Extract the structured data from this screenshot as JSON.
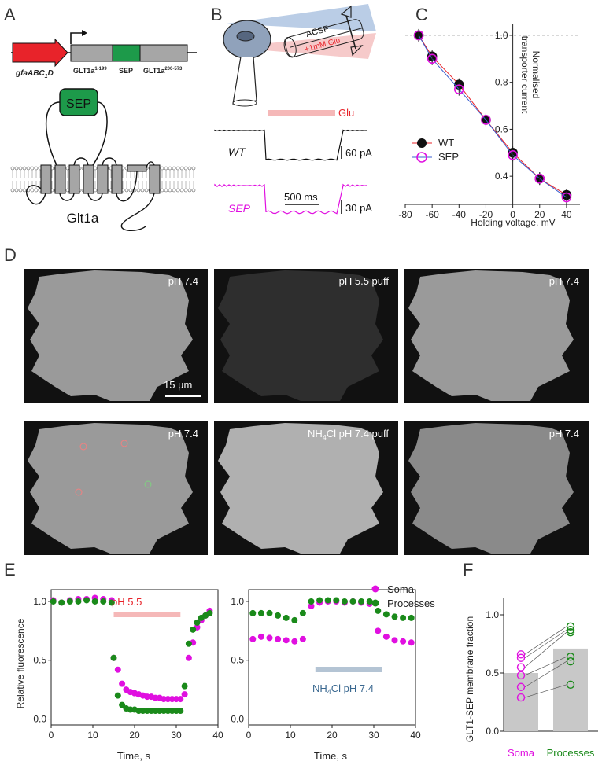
{
  "panel_letters": {
    "A": "A",
    "B": "B",
    "C": "C",
    "D": "D",
    "E": "E",
    "F": "F"
  },
  "panel_a": {
    "promoter": "gfaABC",
    "promoter_sub": "1",
    "promoter_end": "D",
    "seg1": "GLT1a",
    "seg1_sup": "1-199",
    "seg2": "SEP",
    "seg3": "GLT1a",
    "seg3_sup": "200-573",
    "sep_box": "SEP",
    "protein": "Glt1a",
    "colors": {
      "promoter": "#e8232a",
      "glt": "#a6a6a6",
      "sep": "#1d9a4a"
    }
  },
  "panel_b": {
    "acsf": "ACSF",
    "glu_puff": "+1mM Glu",
    "glu_bar": "Glu",
    "wt": "WT",
    "wt_scale": "60 pA",
    "sep": "SEP",
    "sep_scale": "30 pA",
    "time_scale": "500 ms",
    "colors": {
      "wt": "#111111",
      "sep": "#e010e0",
      "glu": "#f5b8b8"
    }
  },
  "panel_c": {
    "xlabel": "Holding voltage, mV",
    "ylabel_line1": "Normalised",
    "ylabel_line2": "transporter current",
    "x_ticks": [
      "-80",
      "-60",
      "-40",
      "-20",
      "0",
      "20",
      "40"
    ],
    "y_ticks": [
      "0.4",
      "0.6",
      "0.8",
      "1.0"
    ],
    "legend": [
      "WT",
      "SEP"
    ]
  },
  "panel_d": {
    "row1": [
      "pH 7.4",
      "pH 5.5 puff",
      "pH 7.4"
    ],
    "row2_1": "pH 7.4",
    "row2_2_sub": "4",
    "row2_2_pre": "NH",
    "row2_2_post": "Cl pH 7.4 puff",
    "row2_3": "pH 7.4",
    "scale": "15 µm"
  },
  "panel_e": {
    "ylabel": "Relative fluorescence",
    "xlabel": "Time, s",
    "left_bar_label": "pH 5.5",
    "right_bar_label_pre": "NH",
    "right_bar_label_sub": "4",
    "right_bar_label_post": "Cl pH 7.4",
    "legend": [
      "Soma",
      "Processes"
    ],
    "x_ticks": [
      "0",
      "10",
      "20",
      "30",
      "40"
    ],
    "y_ticks": [
      "0.0",
      "0.5",
      "1.0"
    ],
    "colors": {
      "soma": "#e010e0",
      "processes": "#1a8a1a",
      "ph_bar": "#f5b8b8",
      "nh4_bar": "#b4c4d4"
    }
  },
  "panel_f": {
    "ylabel": "GLT1-SEP membrane fraction",
    "categories": [
      "Soma",
      "Processes"
    ],
    "y_ticks": [
      "0.0",
      "0.5",
      "1.0"
    ]
  },
  "chart_data": [
    {
      "type": "line",
      "panel": "C",
      "xlabel": "Holding voltage, mV",
      "ylabel": "Normalised transporter current",
      "xlim": [
        -80,
        50
      ],
      "ylim": [
        0.28,
        1.05
      ],
      "x": [
        -70,
        -60,
        -40,
        -20,
        0,
        20,
        40
      ],
      "series": [
        {
          "name": "WT",
          "values": [
            1.0,
            0.91,
            0.79,
            0.64,
            0.5,
            0.39,
            0.32
          ]
        },
        {
          "name": "SEP",
          "values": [
            1.0,
            0.9,
            0.77,
            0.64,
            0.49,
            0.39,
            0.31
          ]
        }
      ]
    },
    {
      "type": "scatter",
      "panel": "E-left",
      "xlabel": "Time, s",
      "ylabel": "Relative fluorescence",
      "xlim": [
        0,
        40
      ],
      "ylim": [
        -0.05,
        1.1
      ],
      "x": [
        0.5,
        2.5,
        4.5,
        6.5,
        8.5,
        10.5,
        12.5,
        14.5,
        15,
        16,
        17,
        18,
        19,
        20,
        21,
        22,
        23,
        24,
        25,
        26,
        27,
        28,
        29,
        30,
        31,
        32,
        33,
        34,
        35,
        36,
        37,
        38
      ],
      "series": [
        {
          "name": "Soma",
          "values": [
            1.01,
            0.99,
            1.01,
            1.02,
            1.02,
            1.03,
            1.02,
            1.01,
            0.52,
            0.42,
            0.3,
            0.25,
            0.23,
            0.22,
            0.21,
            0.2,
            0.19,
            0.19,
            0.18,
            0.18,
            0.17,
            0.17,
            0.17,
            0.17,
            0.17,
            0.21,
            0.52,
            0.65,
            0.78,
            0.84,
            0.88,
            0.92
          ]
        },
        {
          "name": "Processes",
          "values": [
            1.0,
            0.99,
            1.0,
            1.0,
            1.01,
            1.0,
            1.0,
            0.99,
            0.52,
            0.2,
            0.12,
            0.09,
            0.08,
            0.08,
            0.07,
            0.07,
            0.07,
            0.07,
            0.07,
            0.07,
            0.07,
            0.07,
            0.07,
            0.07,
            0.07,
            0.28,
            0.64,
            0.76,
            0.82,
            0.86,
            0.88,
            0.9
          ]
        }
      ]
    },
    {
      "type": "scatter",
      "panel": "E-right",
      "xlabel": "Time, s",
      "ylabel": "",
      "xlim": [
        0,
        40
      ],
      "ylim": [
        -0.05,
        1.1
      ],
      "x": [
        1,
        3,
        5,
        7,
        9,
        11,
        13,
        15,
        17,
        19,
        21,
        23,
        25,
        27,
        29,
        31,
        33,
        35,
        37,
        39
      ],
      "series": [
        {
          "name": "Soma",
          "values": [
            0.68,
            0.7,
            0.69,
            0.68,
            0.67,
            0.66,
            0.68,
            0.96,
            0.99,
            1.0,
            1.0,
            0.99,
            1.0,
            0.99,
            0.98,
            0.75,
            0.7,
            0.67,
            0.66,
            0.65
          ]
        },
        {
          "name": "Processes",
          "values": [
            0.9,
            0.9,
            0.9,
            0.88,
            0.86,
            0.84,
            0.9,
            1.0,
            1.01,
            1.01,
            1.01,
            1.0,
            1.0,
            1.0,
            1.0,
            0.92,
            0.89,
            0.87,
            0.86,
            0.86
          ]
        }
      ]
    },
    {
      "type": "bar",
      "panel": "F",
      "categories": [
        "Soma",
        "Processes"
      ],
      "values": [
        0.5,
        0.71
      ],
      "ylabel": "GLT1-SEP membrane fraction",
      "ylim": [
        0,
        1.0
      ],
      "pairs": [
        [
          0.66,
          0.9
        ],
        [
          0.63,
          0.87
        ],
        [
          0.55,
          0.85
        ],
        [
          0.48,
          0.64
        ],
        [
          0.38,
          0.6
        ],
        [
          0.29,
          0.4
        ]
      ]
    }
  ]
}
